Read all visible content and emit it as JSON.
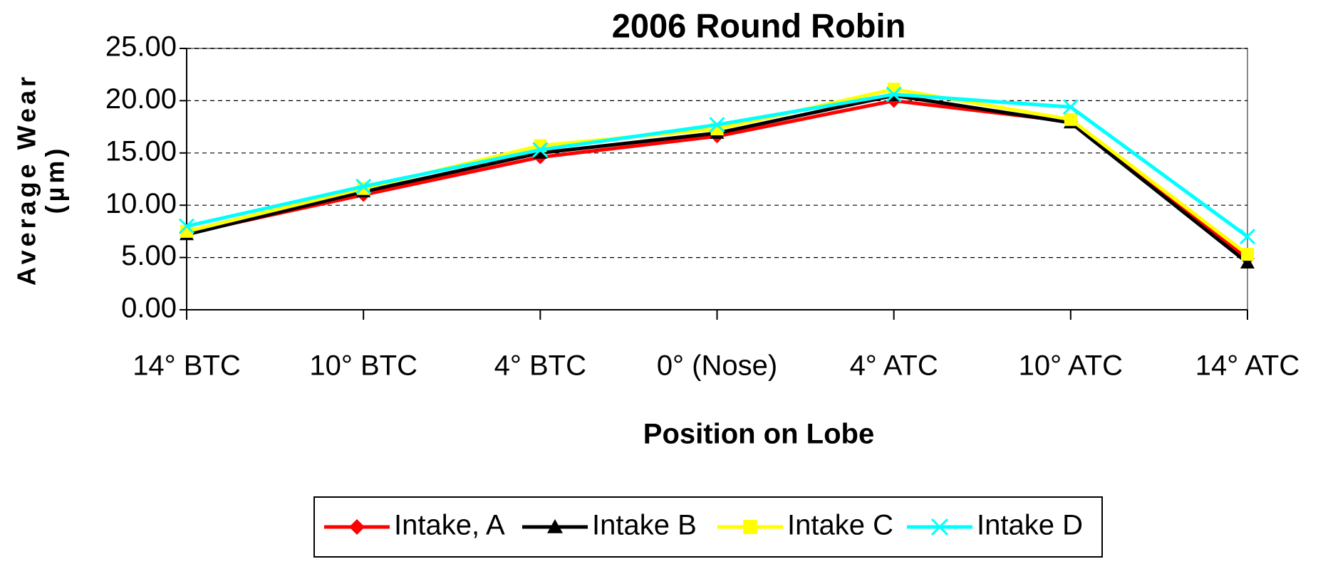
{
  "chart_data": {
    "type": "line",
    "title": "2006 Round Robin",
    "x_label": "Position on Lobe",
    "y_label": [
      "Average Wear",
      "(µm)"
    ],
    "categories": [
      "14° BTC",
      "10° BTC",
      "4° BTC",
      "0° (Nose)",
      "4° ATC",
      "10° ATC",
      "14° ATC"
    ],
    "series": [
      {
        "name": "Intake, A",
        "color": "#ff0000",
        "marker": "diamond",
        "values": [
          7.3,
          11.0,
          14.6,
          16.6,
          20.0,
          18.0,
          4.9
        ]
      },
      {
        "name": "Intake B",
        "color": "#000000",
        "marker": "triangle",
        "values": [
          7.2,
          11.3,
          15.0,
          16.9,
          20.5,
          17.9,
          4.5
        ]
      },
      {
        "name": "Intake C",
        "color": "#ffff00",
        "marker": "square",
        "values": [
          7.5,
          11.6,
          15.7,
          17.3,
          21.1,
          18.2,
          5.3
        ]
      },
      {
        "name": "Intake D",
        "color": "#00ffff",
        "marker": "x",
        "values": [
          8.0,
          11.8,
          15.3,
          17.7,
          20.6,
          19.4,
          7.0
        ]
      }
    ],
    "ylim": [
      0,
      25
    ],
    "yticks": [
      {
        "value": 0,
        "label": "0.00"
      },
      {
        "value": 5,
        "label": "5.00"
      },
      {
        "value": 10,
        "label": "10.00"
      },
      {
        "value": 15,
        "label": "15.00"
      },
      {
        "value": 20,
        "label": "20.00"
      },
      {
        "value": 25,
        "label": "25.00"
      }
    ],
    "grid": true,
    "legend": "bottom"
  }
}
